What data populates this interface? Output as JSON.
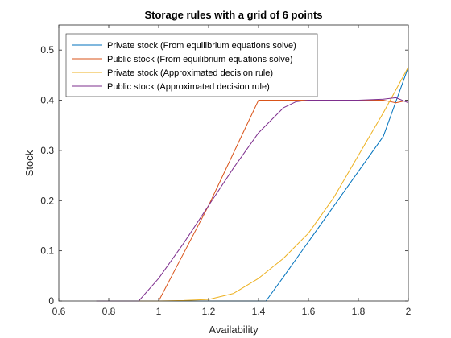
{
  "chart_data": {
    "type": "line",
    "title": "Storage rules with a grid of 6 points",
    "xlabel": "Availability",
    "ylabel": "Stock",
    "xlim": [
      0.6,
      2.0
    ],
    "ylim": [
      0,
      0.55
    ],
    "x_ticks": [
      0.6,
      0.8,
      1.0,
      1.2,
      1.4,
      1.6,
      1.8,
      2.0
    ],
    "x_tick_labels": [
      "0.6",
      "0.8",
      "1",
      "1.2",
      "1.4",
      "1.6",
      "1.8",
      "2"
    ],
    "y_ticks": [
      0,
      0.1,
      0.2,
      0.3,
      0.4,
      0.5
    ],
    "y_tick_labels": [
      "0",
      "0.1",
      "0.2",
      "0.3",
      "0.4",
      "0.5"
    ],
    "grid": false,
    "legend_position": "top-left",
    "series": [
      {
        "name": "Private stock (From equilibrium equations solve)",
        "color": "#0072BD",
        "x": [
          0.75,
          1.43,
          1.5,
          1.6,
          1.7,
          1.8,
          1.9,
          2.0
        ],
        "y": [
          0,
          0,
          0.048,
          0.118,
          0.188,
          0.258,
          0.328,
          0.466
        ]
      },
      {
        "name": "Public stock (From equilibrium equations solve)",
        "color": "#D95319",
        "x": [
          0.75,
          1.0,
          1.1,
          1.2,
          1.3,
          1.4,
          1.6,
          1.8,
          1.9,
          1.95,
          2.0
        ],
        "y": [
          0,
          0,
          0.095,
          0.19,
          0.295,
          0.4,
          0.4,
          0.4,
          0.4,
          0.395,
          0.4
        ]
      },
      {
        "name": "Private stock (Approximated decision rule)",
        "color": "#EDB120",
        "x": [
          0.75,
          1.0,
          1.1,
          1.2,
          1.3,
          1.4,
          1.5,
          1.6,
          1.7,
          1.8,
          1.9,
          2.0
        ],
        "y": [
          0,
          0,
          0.001,
          0.003,
          0.015,
          0.045,
          0.085,
          0.135,
          0.205,
          0.29,
          0.375,
          0.466
        ]
      },
      {
        "name": "Public stock (Approximated decision rule)",
        "color": "#7E2F8E",
        "x": [
          0.75,
          0.92,
          1.0,
          1.1,
          1.2,
          1.3,
          1.4,
          1.5,
          1.55,
          1.6,
          1.8,
          1.9,
          1.95,
          2.0
        ],
        "y": [
          0,
          0,
          0.045,
          0.115,
          0.19,
          0.265,
          0.335,
          0.385,
          0.397,
          0.4,
          0.4,
          0.402,
          0.405,
          0.395
        ]
      }
    ]
  }
}
